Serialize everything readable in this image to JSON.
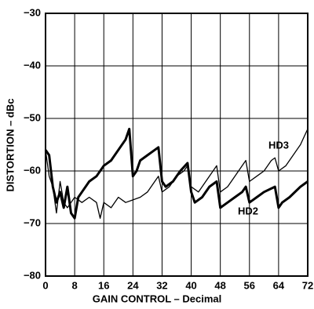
{
  "chart_data": {
    "type": "line",
    "x_label": "GAIN CONTROL – Decimal",
    "y_label": "DISTORTION – dBc",
    "xlim": [
      0,
      72
    ],
    "xticks": [
      0,
      8,
      16,
      24,
      32,
      40,
      48,
      56,
      64,
      72
    ],
    "ylim": [
      -80,
      -30
    ],
    "yticks": [
      {
        "value": -80,
        "label": "−80"
      },
      {
        "value": -70,
        "label": "−70"
      },
      {
        "value": -60,
        "label": "−60"
      },
      {
        "value": -50,
        "label": "−50"
      },
      {
        "value": -40,
        "label": "−40"
      },
      {
        "value": -30,
        "label": "−30"
      }
    ],
    "grid": true,
    "series": [
      {
        "name": "HD2",
        "color": "#000",
        "width": 3,
        "x": [
          0,
          1,
          2,
          3,
          4,
          5,
          6,
          7,
          8,
          9,
          10,
          12,
          14,
          16,
          18,
          20,
          22,
          23,
          24,
          25,
          26,
          28,
          30,
          31,
          32,
          33,
          35,
          37,
          39,
          40,
          41,
          43,
          45,
          47,
          48,
          50,
          52,
          54,
          55,
          56,
          58,
          60,
          63,
          64,
          65,
          67,
          70,
          72
        ],
        "values": [
          -56,
          -57,
          -63,
          -66,
          -64,
          -67,
          -63,
          -68,
          -69,
          -65,
          -64,
          -62,
          -61,
          -59,
          -58,
          -56,
          -54,
          -52,
          -61,
          -60,
          -58,
          -57,
          -56,
          -55.5,
          -62,
          -63,
          -62,
          -60,
          -58.5,
          -64,
          -66,
          -65,
          -63,
          -62,
          -67,
          -66,
          -65,
          -64,
          -63,
          -66,
          -65,
          -64,
          -63,
          -67,
          -66,
          -65,
          -63,
          -62
        ]
      },
      {
        "name": "HD3",
        "color": "#000",
        "width": 1.3,
        "x": [
          0,
          1,
          2,
          3,
          4,
          5,
          6,
          7,
          8,
          10,
          12,
          14,
          15,
          16,
          18,
          20,
          22,
          24,
          26,
          28,
          30,
          31,
          32,
          34,
          36,
          38,
          39,
          40,
          42,
          44,
          46,
          47,
          48,
          50,
          52,
          54,
          55,
          56,
          58,
          60,
          62,
          63,
          64,
          66,
          68,
          70,
          72
        ],
        "values": [
          -56,
          -61,
          -63,
          -68,
          -62,
          -66,
          -67,
          -66,
          -65,
          -66,
          -65,
          -66,
          -69,
          -66,
          -67,
          -65,
          -66,
          -65.5,
          -65,
          -64,
          -62,
          -61,
          -64,
          -63,
          -61,
          -60,
          -59,
          -63,
          -64,
          -62,
          -60,
          -59,
          -64,
          -63,
          -61,
          -59,
          -58,
          -62,
          -61,
          -60,
          -58,
          -57.5,
          -60,
          -59,
          -57,
          -55,
          -52
        ]
      }
    ]
  }
}
